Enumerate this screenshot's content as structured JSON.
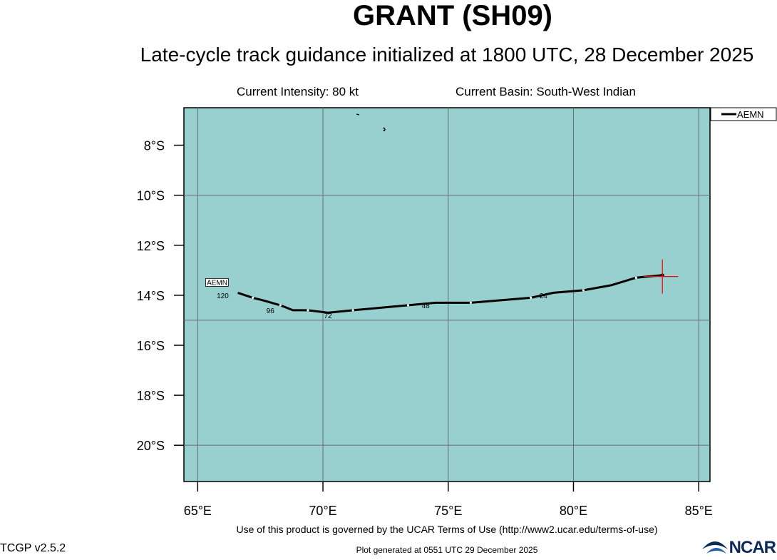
{
  "header": {
    "title": "GRANT (SH09)",
    "subtitle": "Late-cycle track guidance initialized at 1800 UTC, 28 December 2025",
    "intensity": "Current Intensity: 80 kt",
    "basin": "Current Basin: South-West Indian"
  },
  "map": {
    "lon_range": [
      64.45,
      85.45
    ],
    "lat_range": [
      -21.45,
      -6.5
    ],
    "lon_ticks": [
      {
        "value": 65,
        "label": "65°E"
      },
      {
        "value": 70,
        "label": "70°E"
      },
      {
        "value": 75,
        "label": "75°E"
      },
      {
        "value": 80,
        "label": "80°E"
      },
      {
        "value": 85,
        "label": "85°E"
      }
    ],
    "lat_ticks": [
      {
        "value": -8,
        "label": "8°S"
      },
      {
        "value": -10,
        "label": "10°S"
      },
      {
        "value": -12,
        "label": "12°S"
      },
      {
        "value": -14,
        "label": "14°S"
      },
      {
        "value": -16,
        "label": "16°S"
      },
      {
        "value": -18,
        "label": "18°S"
      },
      {
        "value": -20,
        "label": "20°S"
      }
    ],
    "grid_lons": [
      65,
      70,
      75,
      80,
      85
    ],
    "grid_lats": [
      -10,
      -15,
      -20
    ],
    "ocean_color": "#98cfcf",
    "current_position": {
      "lon": 83.55,
      "lat": -13.25
    },
    "marker_color": "#ff0000"
  },
  "legend": {
    "entries": [
      {
        "name": "AEMN",
        "color": "#000000"
      }
    ]
  },
  "chart_data": {
    "type": "line",
    "series": [
      {
        "name": "AEMN",
        "color": "#000000",
        "points": [
          [
            83.55,
            -13.2
          ],
          [
            82.5,
            -13.3
          ],
          [
            81.5,
            -13.6
          ],
          [
            80.4,
            -13.8
          ],
          [
            79.2,
            -13.9
          ],
          [
            78.3,
            -14.1
          ],
          [
            77.1,
            -14.2
          ],
          [
            75.9,
            -14.3
          ],
          [
            74.5,
            -14.3
          ],
          [
            73.4,
            -14.4
          ],
          [
            72.3,
            -14.5
          ],
          [
            71.2,
            -14.6
          ],
          [
            70.2,
            -14.7
          ],
          [
            69.4,
            -14.6
          ],
          [
            68.8,
            -14.6
          ],
          [
            68.3,
            -14.4
          ],
          [
            67.6,
            -14.2
          ],
          [
            67.2,
            -14.1
          ],
          [
            66.6,
            -13.9
          ]
        ],
        "labels": [
          {
            "text": "24",
            "lon": 78.8,
            "lat": -14.0
          },
          {
            "text": "48",
            "lon": 74.1,
            "lat": -14.4
          },
          {
            "text": "72",
            "lon": 70.2,
            "lat": -14.8
          },
          {
            "text": "96",
            "lon": 67.9,
            "lat": -14.6
          },
          {
            "text": "120",
            "lon": 66.0,
            "lat": -14.0
          }
        ],
        "end_label": "AEMN"
      }
    ]
  },
  "footer": {
    "terms": "Use of this product is governed by the UCAR Terms of Use (http://www2.ucar.edu/terms-of-use)",
    "generated": "Plot generated at 0551 UTC   29 December 2025",
    "version": "TCGP v2.5.2",
    "logo_text": "NCAR"
  }
}
